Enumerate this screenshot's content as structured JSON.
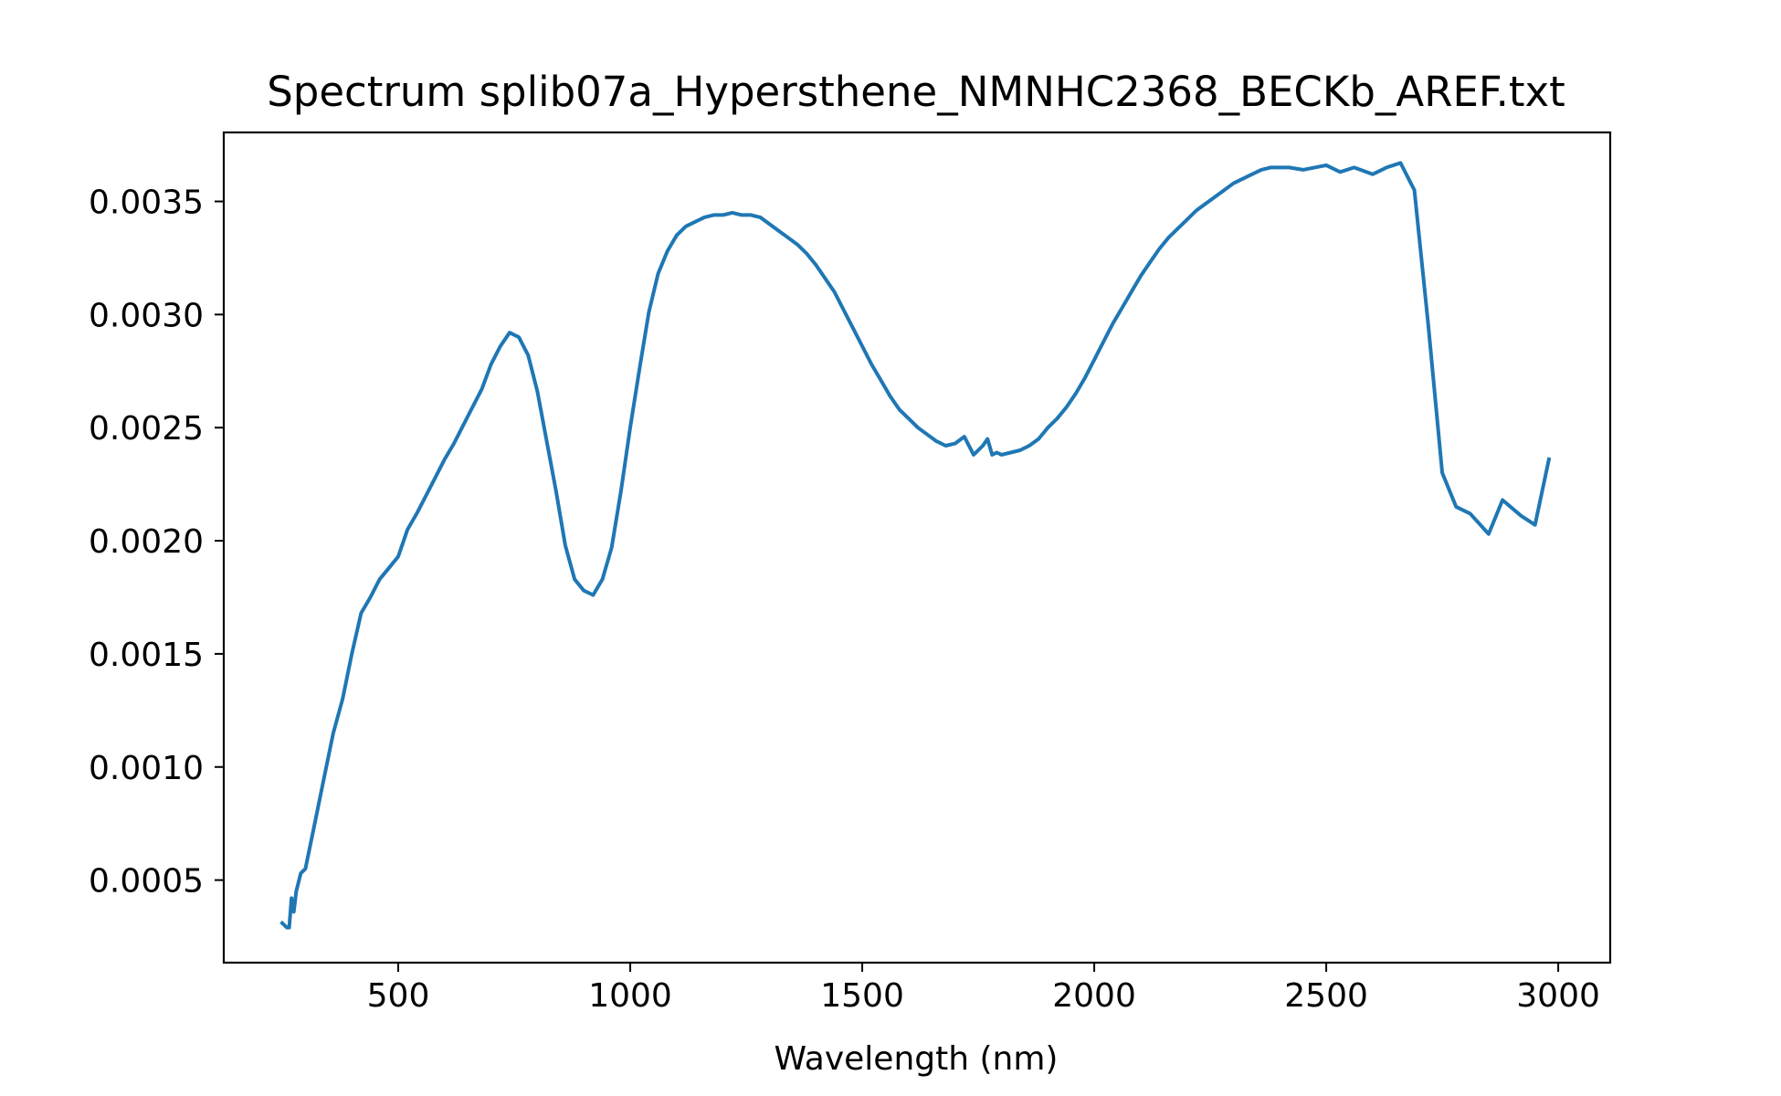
{
  "chart_data": {
    "type": "line",
    "title": "Spectrum splib07a_Hypersthene_NMNHC2368_BECKb_AREF.txt",
    "xlabel": "Wavelength (nm)",
    "ylabel": "",
    "xlim": [
      124,
      3112
    ],
    "ylim": [
      0.000135,
      0.003805
    ],
    "grid": false,
    "legend": "none",
    "colors": {
      "line": "#1f77b4",
      "axes": "#000000",
      "background": "#ffffff"
    },
    "xticks": [
      {
        "value": 500,
        "label": "500"
      },
      {
        "value": 1000,
        "label": "1000"
      },
      {
        "value": 1500,
        "label": "1500"
      },
      {
        "value": 2000,
        "label": "2000"
      },
      {
        "value": 2500,
        "label": "2500"
      },
      {
        "value": 3000,
        "label": "3000"
      }
    ],
    "yticks": [
      {
        "value": 0.0005,
        "label": "0.0005"
      },
      {
        "value": 0.001,
        "label": "0.0010"
      },
      {
        "value": 0.0015,
        "label": "0.0015"
      },
      {
        "value": 0.002,
        "label": "0.0020"
      },
      {
        "value": 0.0025,
        "label": "0.0025"
      },
      {
        "value": 0.003,
        "label": "0.0030"
      },
      {
        "value": 0.0035,
        "label": "0.0035"
      }
    ],
    "series": [
      {
        "x": [
          250,
          260,
          265,
          270,
          275,
          280,
          290,
          300,
          320,
          340,
          360,
          380,
          400,
          420,
          440,
          460,
          480,
          500,
          520,
          540,
          560,
          580,
          600,
          620,
          640,
          660,
          680,
          700,
          720,
          740,
          760,
          780,
          800,
          820,
          840,
          860,
          880,
          900,
          920,
          940,
          960,
          980,
          1000,
          1020,
          1040,
          1060,
          1080,
          1100,
          1120,
          1140,
          1160,
          1180,
          1200,
          1220,
          1240,
          1260,
          1280,
          1300,
          1320,
          1340,
          1360,
          1380,
          1400,
          1420,
          1440,
          1460,
          1480,
          1500,
          1520,
          1540,
          1560,
          1580,
          1600,
          1620,
          1640,
          1660,
          1680,
          1700,
          1720,
          1740,
          1760,
          1770,
          1780,
          1790,
          1800,
          1820,
          1840,
          1860,
          1880,
          1900,
          1920,
          1940,
          1960,
          1980,
          2000,
          2020,
          2040,
          2060,
          2080,
          2100,
          2120,
          2140,
          2160,
          2180,
          2200,
          2220,
          2240,
          2260,
          2280,
          2300,
          2320,
          2340,
          2360,
          2380,
          2400,
          2420,
          2450,
          2500,
          2530,
          2560,
          2600,
          2630,
          2660,
          2690,
          2720,
          2750,
          2780,
          2810,
          2850,
          2880,
          2920,
          2950,
          2980
        ],
        "y": [
          0.00031,
          0.00029,
          0.00029,
          0.00042,
          0.00036,
          0.00045,
          0.00053,
          0.00055,
          0.00075,
          0.00095,
          0.00115,
          0.0013,
          0.0015,
          0.00168,
          0.00175,
          0.00183,
          0.00188,
          0.00193,
          0.00205,
          0.00212,
          0.0022,
          0.00228,
          0.00236,
          0.00243,
          0.00251,
          0.00259,
          0.00267,
          0.00278,
          0.00286,
          0.00292,
          0.0029,
          0.00282,
          0.00266,
          0.00244,
          0.00222,
          0.00198,
          0.00183,
          0.00178,
          0.00176,
          0.00183,
          0.00197,
          0.00222,
          0.0025,
          0.00276,
          0.00301,
          0.00318,
          0.00328,
          0.00335,
          0.00339,
          0.00341,
          0.00343,
          0.00344,
          0.00344,
          0.00345,
          0.00344,
          0.00344,
          0.00343,
          0.0034,
          0.00337,
          0.00334,
          0.00331,
          0.00327,
          0.00322,
          0.00316,
          0.0031,
          0.00302,
          0.00294,
          0.00286,
          0.00278,
          0.00271,
          0.00264,
          0.00258,
          0.00254,
          0.0025,
          0.00247,
          0.00244,
          0.00242,
          0.00243,
          0.00246,
          0.00238,
          0.00242,
          0.00245,
          0.00238,
          0.00239,
          0.00238,
          0.00239,
          0.0024,
          0.00242,
          0.00245,
          0.0025,
          0.00254,
          0.00259,
          0.00265,
          0.00272,
          0.0028,
          0.00288,
          0.00296,
          0.00303,
          0.0031,
          0.00317,
          0.00323,
          0.00329,
          0.00334,
          0.00338,
          0.00342,
          0.00346,
          0.00349,
          0.00352,
          0.00355,
          0.00358,
          0.0036,
          0.00362,
          0.00364,
          0.00365,
          0.00365,
          0.00365,
          0.00364,
          0.00366,
          0.00363,
          0.00365,
          0.00362,
          0.00365,
          0.00367,
          0.00355,
          0.00295,
          0.0023,
          0.00215,
          0.00212,
          0.00203,
          0.00218,
          0.00211,
          0.00207,
          0.00236
        ]
      }
    ]
  }
}
